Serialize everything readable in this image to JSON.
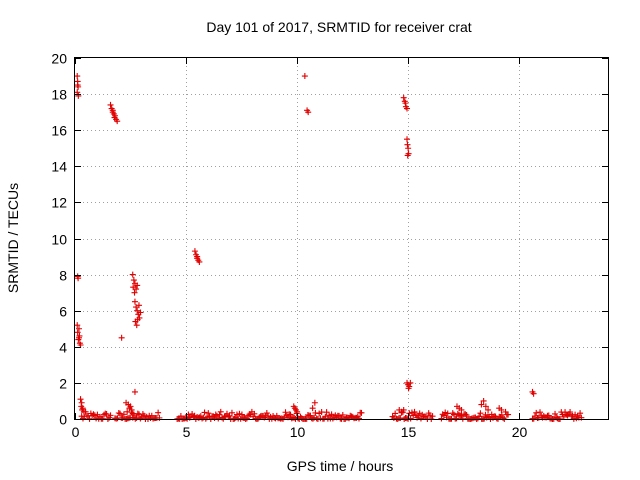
{
  "chart_data": {
    "type": "scatter",
    "title": "Day 101 of 2017, SRMTID for receiver crat",
    "xlabel": "GPS time / hours",
    "ylabel": "SRMTID / TECUs",
    "xlim": [
      0,
      24
    ],
    "ylim": [
      0,
      20
    ],
    "xticks": [
      0,
      5,
      10,
      15,
      20
    ],
    "yticks": [
      0,
      2,
      4,
      6,
      8,
      10,
      12,
      14,
      16,
      18,
      20
    ],
    "grid": true,
    "marker": "+",
    "color": "#e00000",
    "series": [
      {
        "name": "SRMTID",
        "points": [
          [
            0.1,
            19.0
          ],
          [
            0.12,
            18.7
          ],
          [
            0.14,
            18.4
          ],
          [
            0.1,
            18.1
          ],
          [
            0.15,
            17.9
          ],
          [
            0.12,
            18.5
          ],
          [
            0.12,
            7.9
          ],
          [
            0.14,
            7.8
          ],
          [
            0.1,
            5.2
          ],
          [
            0.18,
            5.0
          ],
          [
            0.12,
            4.8
          ],
          [
            0.2,
            4.6
          ],
          [
            0.15,
            4.4
          ],
          [
            0.22,
            4.2
          ],
          [
            0.18,
            4.5
          ],
          [
            0.25,
            4.1
          ],
          [
            0.25,
            1.1
          ],
          [
            0.3,
            0.9
          ],
          [
            0.28,
            0.7
          ],
          [
            0.35,
            0.6
          ],
          [
            0.32,
            0.5
          ],
          [
            0.4,
            0.4
          ],
          [
            1.6,
            17.4
          ],
          [
            1.65,
            17.2
          ],
          [
            1.7,
            17.0
          ],
          [
            1.75,
            16.9
          ],
          [
            1.8,
            16.8
          ],
          [
            1.7,
            17.1
          ],
          [
            1.85,
            16.6
          ],
          [
            1.9,
            16.5
          ],
          [
            1.78,
            16.7
          ],
          [
            2.1,
            4.5
          ],
          [
            2.6,
            8.0
          ],
          [
            2.65,
            7.7
          ],
          [
            2.7,
            7.5
          ],
          [
            2.62,
            7.3
          ],
          [
            2.75,
            7.2
          ],
          [
            2.68,
            7.0
          ],
          [
            2.8,
            7.4
          ],
          [
            2.7,
            6.5
          ],
          [
            2.75,
            6.2
          ],
          [
            2.8,
            6.0
          ],
          [
            2.85,
            5.8
          ],
          [
            2.9,
            5.6
          ],
          [
            2.72,
            5.4
          ],
          [
            2.78,
            5.2
          ],
          [
            2.88,
            6.3
          ],
          [
            2.95,
            5.9
          ],
          [
            2.82,
            5.5
          ],
          [
            2.7,
            1.5
          ],
          [
            2.3,
            0.9
          ],
          [
            2.4,
            0.8
          ],
          [
            2.5,
            0.7
          ],
          [
            2.45,
            0.6
          ],
          [
            2.55,
            0.5
          ],
          [
            2.35,
            0.4
          ],
          [
            2.6,
            0.3
          ],
          [
            5.4,
            9.3
          ],
          [
            5.45,
            9.1
          ],
          [
            5.5,
            8.9
          ],
          [
            5.55,
            8.8
          ],
          [
            5.6,
            8.7
          ],
          [
            5.5,
            9.0
          ],
          [
            9.85,
            0.7
          ],
          [
            9.9,
            0.6
          ],
          [
            9.95,
            0.5
          ],
          [
            10.0,
            0.4
          ],
          [
            10.35,
            19.0
          ],
          [
            10.45,
            17.1
          ],
          [
            10.5,
            17.0
          ],
          [
            10.8,
            0.9
          ],
          [
            10.7,
            0.6
          ],
          [
            14.8,
            17.8
          ],
          [
            14.85,
            17.6
          ],
          [
            14.9,
            17.3
          ],
          [
            14.95,
            17.2
          ],
          [
            14.88,
            17.5
          ],
          [
            14.95,
            15.5
          ],
          [
            14.97,
            15.2
          ],
          [
            15.0,
            15.0
          ],
          [
            15.02,
            14.7
          ],
          [
            14.98,
            14.6
          ],
          [
            14.95,
            2.0
          ],
          [
            15.0,
            1.9
          ],
          [
            15.05,
            1.8
          ],
          [
            15.1,
            2.0
          ],
          [
            15.02,
            1.7
          ],
          [
            14.6,
            0.5
          ],
          [
            14.7,
            0.4
          ],
          [
            14.8,
            0.5
          ],
          [
            17.2,
            0.7
          ],
          [
            17.3,
            0.6
          ],
          [
            17.4,
            0.5
          ],
          [
            18.3,
            0.8
          ],
          [
            18.4,
            1.0
          ],
          [
            18.5,
            0.7
          ],
          [
            18.6,
            0.5
          ],
          [
            19.1,
            0.6
          ],
          [
            19.2,
            0.5
          ],
          [
            20.6,
            1.5
          ],
          [
            20.65,
            1.4
          ]
        ],
        "dense_baseline_segments": [
          [
            0.3,
            1.6
          ],
          [
            1.8,
            3.8
          ],
          [
            4.6,
            12.9
          ],
          [
            14.3,
            16.1
          ],
          [
            16.5,
            19.5
          ],
          [
            20.6,
            22.8
          ]
        ],
        "baseline_range": [
          0,
          0.4
        ]
      }
    ]
  }
}
